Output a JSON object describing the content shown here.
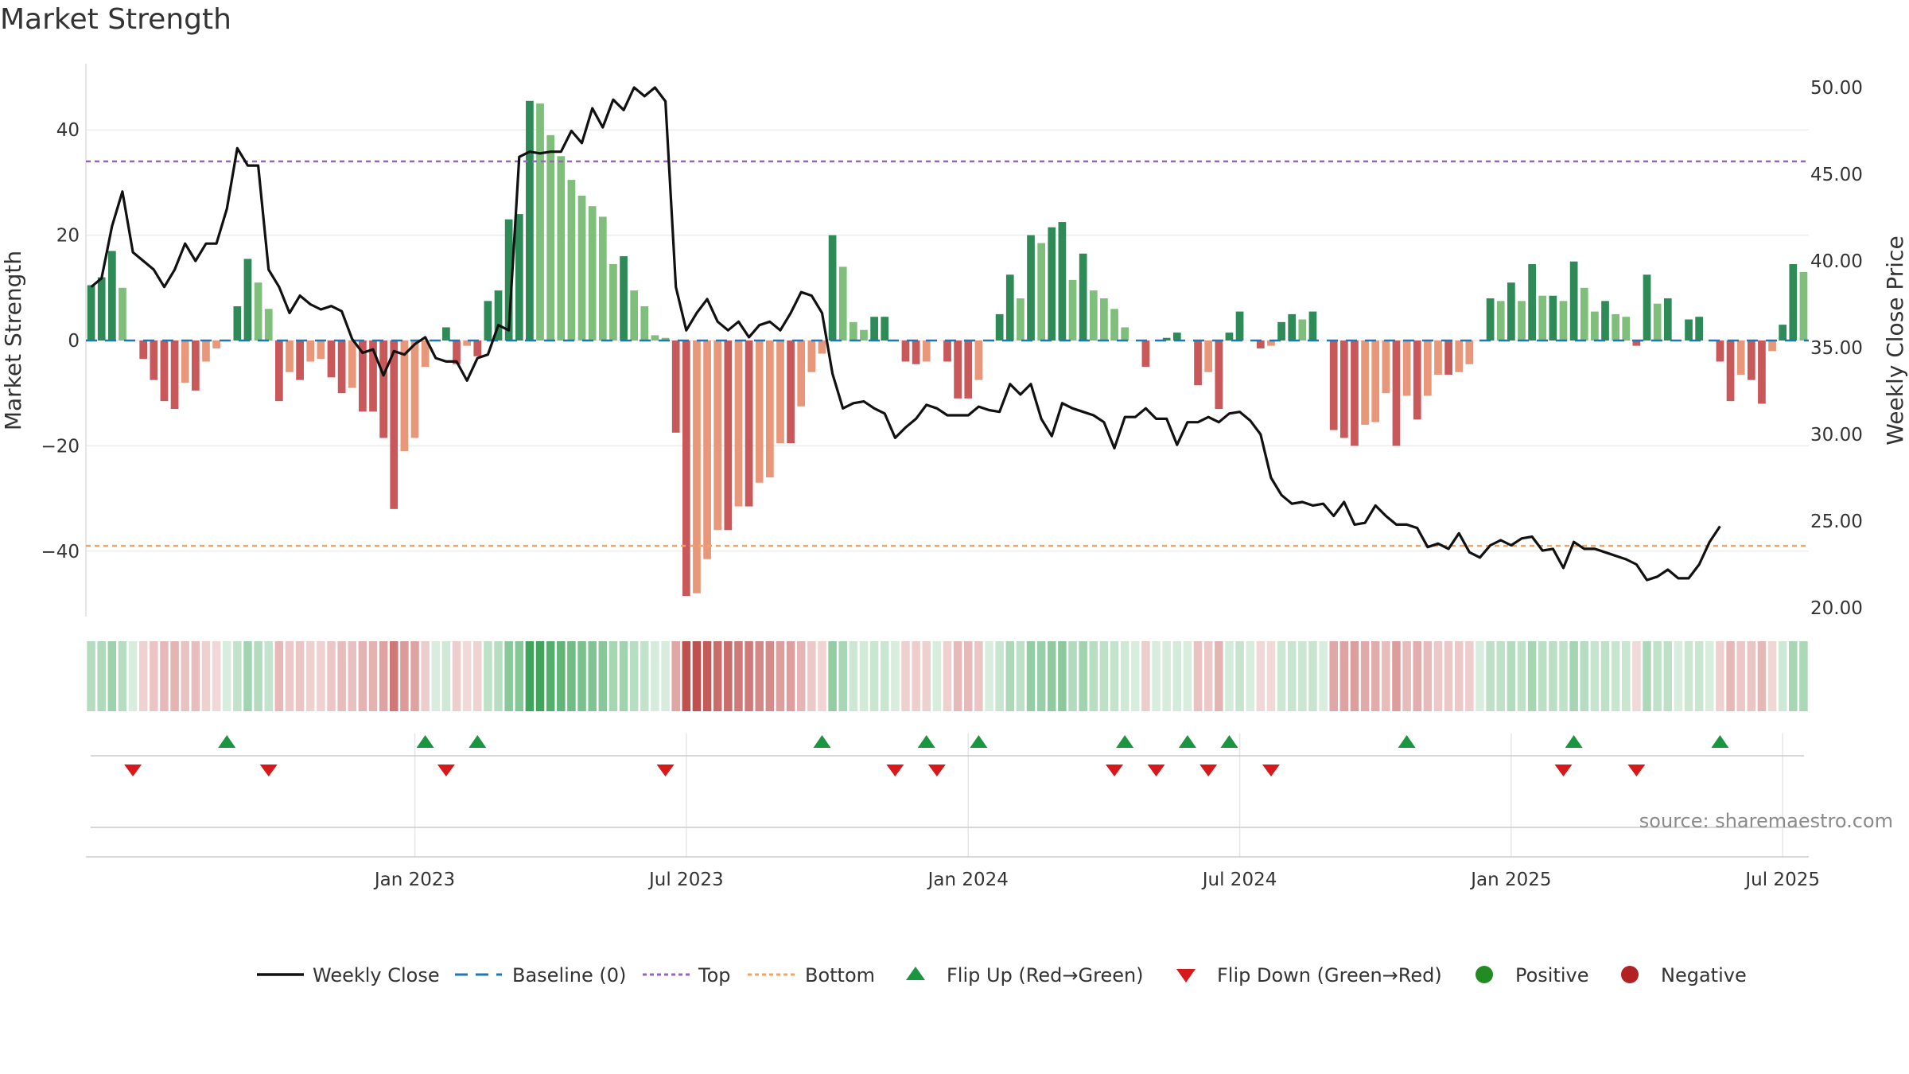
{
  "title": "Market Strength",
  "source": "source: sharemaestro.com",
  "chart_data": {
    "type": "bar+line",
    "title": "Market Strength",
    "ylabel_left": "Market Strength",
    "ylabel_right": "Weekly Close Price",
    "ylim_left": [
      -52,
      52
    ],
    "ylim_right": [
      20,
      51
    ],
    "yticks_left": [
      {
        "v": 40,
        "label": "40"
      },
      {
        "v": 20,
        "label": "20"
      },
      {
        "v": 0,
        "label": "0"
      },
      {
        "v": -20,
        "label": "−20"
      },
      {
        "v": -40,
        "label": "−40"
      }
    ],
    "yticks_right": [
      {
        "v": 50,
        "label": "50.00"
      },
      {
        "v": 45,
        "label": "45.00"
      },
      {
        "v": 40,
        "label": "40.00"
      },
      {
        "v": 35,
        "label": "35.00"
      },
      {
        "v": 30,
        "label": "30.00"
      },
      {
        "v": 25,
        "label": "25.00"
      },
      {
        "v": 20,
        "label": "20.00"
      }
    ],
    "x_ticks": [
      {
        "week": 31,
        "label": "Jan 2023"
      },
      {
        "week": 57,
        "label": "Jul 2023"
      },
      {
        "week": 84,
        "label": "Jan 2024"
      },
      {
        "week": 110,
        "label": "Jul 2024"
      },
      {
        "week": 136,
        "label": "Jan 2025"
      },
      {
        "week": 162,
        "label": "Jul 2025"
      }
    ],
    "top_level": 34,
    "bottom_level": -39,
    "strength": [
      10.5,
      12,
      17,
      10,
      0,
      -3.5,
      -7.5,
      -11.5,
      -13,
      -8,
      -9.5,
      -4,
      -1.5,
      0,
      6.5,
      15.5,
      11,
      6,
      -11.5,
      -6,
      -7.5,
      -4,
      -3.5,
      -7,
      -10,
      -9,
      -13.5,
      -13.5,
      -18.5,
      -32,
      -21,
      -18.5,
      -5,
      0,
      2.5,
      -4.5,
      -1,
      -3,
      7.5,
      9.5,
      23,
      24,
      45.5,
      45,
      39,
      35,
      30.5,
      27.5,
      25.5,
      23.5,
      14.5,
      16,
      9.5,
      6.5,
      1,
      0.5,
      -17.5,
      -48.5,
      -48,
      -41.5,
      -36,
      -36,
      -31.5,
      -31.5,
      -27,
      -26,
      -19.5,
      -19.5,
      -12.5,
      -6,
      -2.5,
      20,
      14,
      3.5,
      2,
      4.5,
      4.5,
      0,
      -4,
      -4.5,
      -4,
      0,
      -4,
      -11,
      -11,
      -7.5,
      0,
      5,
      12.5,
      8,
      20,
      18.5,
      21.5,
      22.5,
      11.5,
      16.5,
      9.5,
      8,
      6,
      2.5,
      0,
      -5,
      0,
      0.5,
      1.5,
      0,
      -8.5,
      -6,
      -13,
      1.5,
      5.5,
      0,
      -1.5,
      -1,
      3.5,
      5,
      4,
      5.5,
      0,
      -17,
      -18.5,
      -20,
      -16,
      -15.5,
      -10,
      -20,
      -10.5,
      -15,
      -10.5,
      -6.5,
      -6.5,
      -6,
      -4.5,
      0,
      8,
      7.5,
      11,
      7.5,
      14.5,
      8.5,
      8.5,
      7.5,
      15,
      10,
      5.5,
      7.5,
      5,
      4.5,
      -1,
      12.5,
      7,
      8,
      0,
      4,
      4.5,
      0,
      -4,
      -11.5,
      -6.5,
      -7.5,
      -12,
      -2,
      3,
      14.5,
      13
    ],
    "weekly_close": [
      38.5,
      39,
      42,
      44,
      40.5,
      40,
      39.5,
      38.5,
      39.5,
      41,
      40,
      41,
      41,
      43,
      46.5,
      45.5,
      45.5,
      39.5,
      38.5,
      37,
      38,
      37.5,
      37.2,
      37.4,
      37.1,
      35.5,
      34.7,
      34.9,
      33.4,
      34.8,
      34.6,
      35.2,
      35.6,
      34.4,
      34.2,
      34.2,
      33.1,
      34.4,
      34.6,
      36.3,
      36,
      46,
      46.3,
      46.2,
      46.3,
      46.3,
      47.5,
      46.8,
      48.8,
      47.7,
      49.3,
      48.7,
      50,
      49.5,
      50,
      49.2,
      38.5,
      36,
      37,
      37.8,
      36.5,
      36,
      36.5,
      35.6,
      36.3,
      36.5,
      36,
      37,
      38.2,
      38,
      37,
      33.5,
      31.5,
      31.8,
      31.9,
      31.5,
      31.2,
      29.8,
      30.4,
      30.9,
      31.7,
      31.5,
      31.1,
      31.1,
      31.1,
      31.6,
      31.4,
      31.3,
      32.9,
      32.3,
      32.9,
      30.9,
      29.9,
      31.8,
      31.5,
      31.3,
      31.1,
      30.7,
      29.2,
      31,
      31,
      31.5,
      30.9,
      30.9,
      29.4,
      30.7,
      30.7,
      31,
      30.7,
      31.2,
      31.3,
      30.8,
      30,
      27.5,
      26.5,
      26,
      26.1,
      25.9,
      26,
      25.3,
      26.1,
      24.8,
      24.9,
      25.9,
      25.3,
      24.8,
      24.8,
      24.6,
      23.5,
      23.7,
      23.4,
      24.3,
      23.2,
      22.9,
      23.6,
      23.9,
      23.6,
      24,
      24.1,
      23.3,
      23.4,
      22.3,
      23.8,
      23.4,
      23.4,
      23.2,
      23,
      22.8,
      22.5,
      21.6,
      21.8,
      22.2,
      21.7,
      21.7,
      22.5,
      23.8,
      24.7
    ],
    "flip_up_weeks": [
      13,
      32,
      37,
      70,
      80,
      85,
      99,
      105,
      109,
      126,
      142,
      156
    ],
    "flip_down_weeks": [
      4,
      17,
      34,
      55,
      77,
      81,
      98,
      102,
      107,
      113,
      141,
      148
    ],
    "legend": [
      "Weekly Close",
      "Baseline (0)",
      "Top",
      "Bottom",
      "Flip Up (Red→Green)",
      "Flip Down (Green→Red)",
      "Positive",
      "Negative"
    ]
  },
  "colors": {
    "pos_dark": "#2e8b57",
    "pos_light": "#7fbf7b",
    "neg_dark": "#c8585a",
    "neg_light": "#e8977a",
    "line": "#111111",
    "baseline": "#1f77b4",
    "top": "#9467bd",
    "bottom": "#f4a460",
    "flip_up": "#1a9641",
    "flip_down": "#d7191c",
    "positive_dot": "#228b22",
    "negative_dot": "#b22222"
  }
}
